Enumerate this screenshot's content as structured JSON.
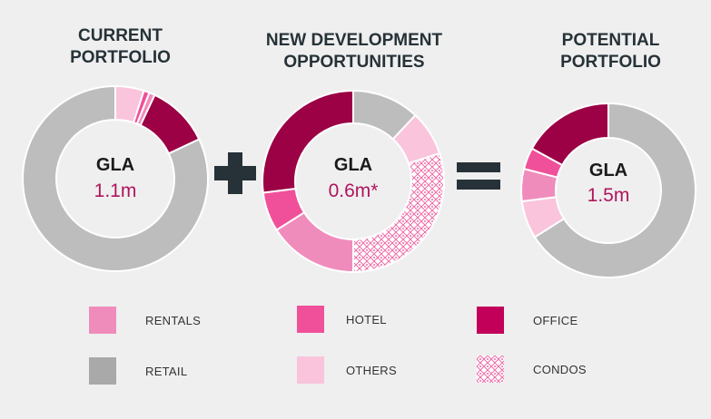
{
  "titles": {
    "current": "CURRENT\nPORTFOLIO",
    "new_dev": "NEW DEVELOPMENT\nOPPORTUNITIES",
    "potential": "POTENTIAL\nPORTFOLIO"
  },
  "operators": {
    "plus": "+",
    "equals": "="
  },
  "colors": {
    "rentals": "#f08cbc",
    "retail": "#bdbdbd",
    "hotel": "#f0509a",
    "others": "#f9c4dc",
    "office": "#9c0045",
    "condos": "#f06aa8",
    "center_value": "#b0145c",
    "operator": "#263238"
  },
  "legend": [
    {
      "key": "rentals",
      "label": "RENTALS"
    },
    {
      "key": "hotel",
      "label": "HOTEL"
    },
    {
      "key": "office",
      "label": "OFFICE"
    },
    {
      "key": "retail",
      "label": "RETAIL"
    },
    {
      "key": "others",
      "label": "OTHERS"
    },
    {
      "key": "condos",
      "label": "CONDOS"
    }
  ],
  "chart_data": [
    {
      "type": "pie",
      "title": "CURRENT PORTFOLIO",
      "center_label": "GLA",
      "center_value": "1.1m",
      "slices": [
        {
          "name": "OTHERS",
          "value": 5
        },
        {
          "name": "HOTEL",
          "value": 1
        },
        {
          "name": "RENTALS",
          "value": 1
        },
        {
          "name": "OFFICE",
          "value": 11
        },
        {
          "name": "RETAIL",
          "value": 82
        }
      ]
    },
    {
      "type": "pie",
      "title": "NEW DEVELOPMENT OPPORTUNITIES",
      "center_label": "GLA",
      "center_value": "0.6m*",
      "slices": [
        {
          "name": "RETAIL",
          "value": 12
        },
        {
          "name": "OTHERS",
          "value": 8
        },
        {
          "name": "CONDOS",
          "value": 30
        },
        {
          "name": "RENTALS",
          "value": 16
        },
        {
          "name": "HOTEL",
          "value": 7
        },
        {
          "name": "OFFICE",
          "value": 27
        }
      ]
    },
    {
      "type": "pie",
      "title": "POTENTIAL PORTFOLIO",
      "center_label": "GLA",
      "center_value": "1.5m",
      "slices": [
        {
          "name": "RETAIL",
          "value": 66
        },
        {
          "name": "OTHERS",
          "value": 7
        },
        {
          "name": "RENTALS",
          "value": 6
        },
        {
          "name": "HOTEL",
          "value": 4
        },
        {
          "name": "OFFICE",
          "value": 17
        }
      ]
    }
  ]
}
